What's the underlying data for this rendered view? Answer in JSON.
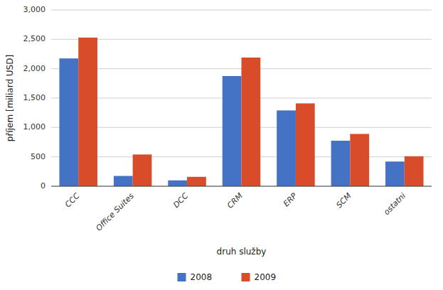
{
  "chart_data": {
    "type": "bar",
    "categories": [
      "CCC",
      "Office Suites",
      "DCC",
      "CRM",
      "ERP",
      "SCM",
      "ostatni"
    ],
    "series": [
      {
        "name": "2008",
        "color": "#4472C4",
        "values": [
          2175,
          175,
          100,
          1875,
          1290,
          775,
          420
        ]
      },
      {
        "name": "2009",
        "color": "#D94C2A",
        "values": [
          2530,
          540,
          160,
          2190,
          1410,
          890,
          510
        ]
      }
    ],
    "ylabel": "příjem [miliard USD]",
    "xlabel": "druh služby",
    "ylim": [
      0,
      3000
    ],
    "yticks": [
      0,
      500,
      {
        "value": 1000,
        "label": "1,000"
      },
      {
        "value": 1500,
        "label": "1,500"
      },
      {
        "value": 2000,
        "label": "2,000"
      },
      {
        "value": 2500,
        "label": "2,500"
      },
      {
        "value": 3000,
        "label": "3,000"
      }
    ],
    "grid": true,
    "legend": "bottom"
  }
}
